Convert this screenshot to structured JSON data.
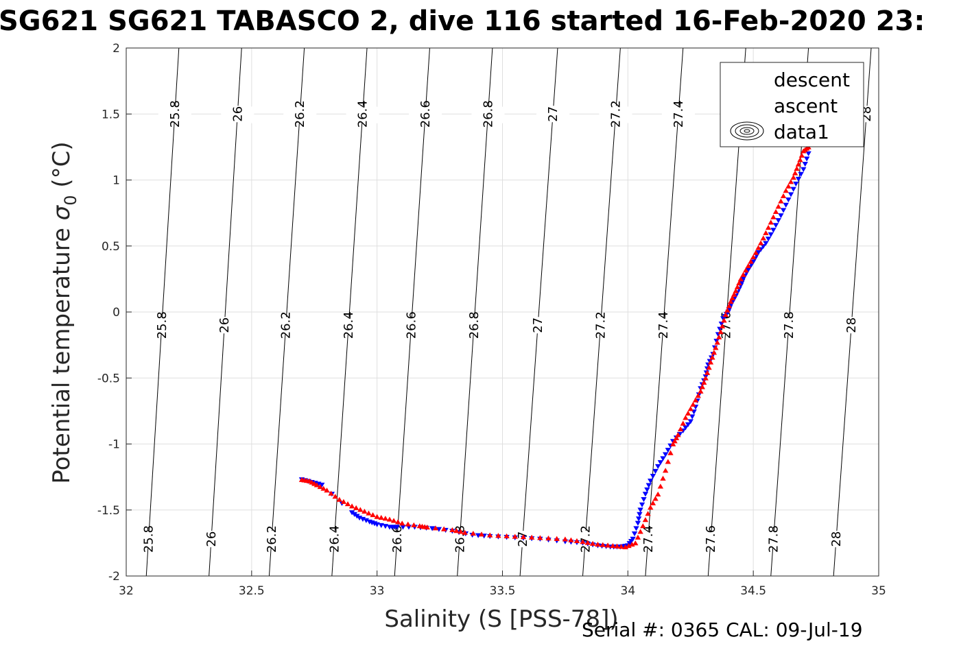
{
  "page": {
    "title": "SG621 SG621 TABASCO 2, dive 116 started 16-Feb-2020 23:",
    "footer": "Serial #: 0365  CAL: 09-Jul-19"
  },
  "chart_data": {
    "type": "scatter",
    "title": "SG621 SG621 TABASCO 2, dive 116 started 16-Feb-2020 23:",
    "xlabel": "Salinity (S [PSS-78])",
    "ylabel": "Potential temperature σ0 (°C)",
    "xlim": [
      32,
      35
    ],
    "ylim": [
      -2,
      2
    ],
    "xticks": [
      32,
      32.5,
      33,
      33.5,
      34,
      34.5,
      35
    ],
    "yticks": [
      -2,
      -1.5,
      -1,
      -0.5,
      0,
      0.5,
      1,
      1.5,
      2
    ],
    "xtick_labels": [
      "32",
      "32.5",
      "33",
      "33.5",
      "34",
      "34.5",
      "35"
    ],
    "ytick_labels": [
      "-2",
      "-1.5",
      "-1",
      "-0.5",
      "0",
      "0.5",
      "1",
      "1.5",
      "2"
    ],
    "grid": true,
    "legend_position": "top-right",
    "colors": {
      "descent": "#0000ff",
      "ascent": "#ff0000",
      "contour": "#000000",
      "grid": "#dfdfdf"
    },
    "series": [
      {
        "name": "descent",
        "marker": "triangle-down",
        "color": "#0000ff",
        "x": [
          32.7,
          32.74,
          32.78,
          32.9,
          32.93,
          32.97,
          33.0,
          33.05,
          33.08,
          33.15,
          33.22,
          33.3,
          33.38,
          33.45,
          33.55,
          33.65,
          33.75,
          33.82,
          33.88,
          33.93,
          33.97,
          34.0,
          34.02,
          34.04,
          34.05,
          34.07,
          34.09,
          34.12,
          34.15,
          34.18,
          34.22,
          34.25,
          34.27,
          34.29,
          34.31,
          34.32,
          34.34,
          34.36,
          34.38,
          34.4,
          34.41,
          34.43,
          34.45,
          34.46,
          34.48,
          34.5,
          34.52,
          34.55,
          34.58,
          34.61,
          34.64,
          34.67,
          34.7,
          34.72
        ],
        "y": [
          -1.27,
          -1.29,
          -1.31,
          -1.52,
          -1.56,
          -1.59,
          -1.61,
          -1.63,
          -1.63,
          -1.63,
          -1.64,
          -1.66,
          -1.69,
          -1.7,
          -1.71,
          -1.72,
          -1.74,
          -1.75,
          -1.77,
          -1.78,
          -1.78,
          -1.77,
          -1.72,
          -1.6,
          -1.5,
          -1.38,
          -1.28,
          -1.17,
          -1.08,
          -0.98,
          -0.9,
          -0.83,
          -0.72,
          -0.58,
          -0.49,
          -0.4,
          -0.32,
          -0.17,
          -0.05,
          0.0,
          0.05,
          0.12,
          0.2,
          0.25,
          0.32,
          0.38,
          0.45,
          0.52,
          0.62,
          0.73,
          0.85,
          0.97,
          1.08,
          1.2
        ]
      },
      {
        "name": "ascent",
        "marker": "triangle-up",
        "color": "#ff0000",
        "x": [
          32.7,
          32.73,
          32.76,
          32.8,
          32.85,
          32.9,
          32.95,
          33.0,
          33.05,
          33.1,
          33.17,
          33.2,
          33.3,
          33.35,
          33.45,
          33.55,
          33.65,
          33.75,
          33.82,
          33.88,
          33.94,
          33.99,
          34.03,
          34.06,
          34.09,
          34.12,
          34.15,
          34.18,
          34.2,
          34.23,
          34.26,
          34.29,
          34.31,
          34.33,
          34.35,
          34.37,
          34.39,
          34.41,
          34.43,
          34.45,
          34.48,
          34.51,
          34.54,
          34.57,
          34.6,
          34.63,
          34.66,
          34.68,
          34.7,
          34.72
        ],
        "y": [
          -1.27,
          -1.28,
          -1.31,
          -1.35,
          -1.42,
          -1.47,
          -1.51,
          -1.55,
          -1.57,
          -1.6,
          -1.62,
          -1.63,
          -1.65,
          -1.67,
          -1.69,
          -1.7,
          -1.71,
          -1.72,
          -1.74,
          -1.76,
          -1.77,
          -1.78,
          -1.75,
          -1.62,
          -1.48,
          -1.38,
          -1.2,
          -1.0,
          -0.93,
          -0.8,
          -0.7,
          -0.6,
          -0.5,
          -0.38,
          -0.27,
          -0.15,
          -0.02,
          0.08,
          0.16,
          0.25,
          0.35,
          0.45,
          0.56,
          0.68,
          0.8,
          0.92,
          1.02,
          1.12,
          1.22,
          1.25
        ]
      }
    ],
    "contours": [
      {
        "label": "25.8",
        "x": [
          32.08,
          32.21
        ]
      },
      {
        "label": "26",
        "x": [
          32.33,
          32.46
        ]
      },
      {
        "label": "26.2",
        "x": [
          32.57,
          32.71
        ]
      },
      {
        "label": "26.4",
        "x": [
          32.82,
          32.96
        ]
      },
      {
        "label": "26.6",
        "x": [
          33.07,
          33.21
        ]
      },
      {
        "label": "26.8",
        "x": [
          33.32,
          33.46
        ]
      },
      {
        "label": "27",
        "x": [
          33.57,
          33.72
        ]
      },
      {
        "label": "27.2",
        "x": [
          33.82,
          33.97
        ]
      },
      {
        "label": "27.4",
        "x": [
          34.07,
          34.22
        ]
      },
      {
        "label": "27.6",
        "x": [
          34.32,
          34.47
        ]
      },
      {
        "label": "27.8",
        "x": [
          34.57,
          34.72
        ]
      },
      {
        "label": "28",
        "x": [
          34.82,
          34.97
        ]
      }
    ],
    "legend": [
      "descent",
      "ascent",
      "data1"
    ]
  }
}
